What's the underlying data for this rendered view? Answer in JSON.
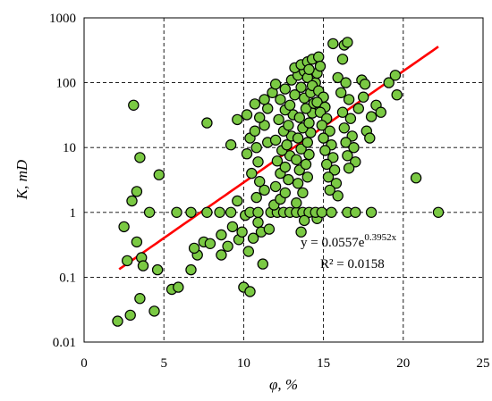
{
  "chart_data": {
    "type": "scatter",
    "title": "",
    "xlabel": "φ, %",
    "ylabel": "K, mD",
    "xlim": [
      0,
      25
    ],
    "ylim": [
      0.01,
      1000
    ],
    "yscale": "log",
    "grid": true,
    "x_ticks": [
      "0",
      "5",
      "10",
      "15",
      "20",
      "25"
    ],
    "y_ticks": [
      "0.01",
      "0.1",
      "1",
      "10",
      "100",
      "1000"
    ],
    "marker_color": "#7ac943",
    "marker_edge": "#000000",
    "trendline_color": "#ff0000",
    "annotation_eq": "y = 0.0557e",
    "annotation_exp": "0.3952x",
    "annotation_r2": "R² = 0.0158",
    "trendline": {
      "a": 0.0557,
      "b": 0.3952,
      "x_start": 2.2,
      "x_end": 22.2
    },
    "points": [
      [
        2.1,
        0.021
      ],
      [
        2.9,
        0.026
      ],
      [
        3.5,
        0.047
      ],
      [
        4.4,
        0.03
      ],
      [
        3.1,
        45
      ],
      [
        3.5,
        7
      ],
      [
        4.7,
        3.8
      ],
      [
        3.3,
        2.1
      ],
      [
        3.0,
        1.5
      ],
      [
        4.1,
        1.0
      ],
      [
        2.5,
        0.6
      ],
      [
        3.3,
        0.35
      ],
      [
        2.7,
        0.18
      ],
      [
        3.6,
        0.2
      ],
      [
        3.7,
        0.15
      ],
      [
        4.6,
        0.13
      ],
      [
        5.5,
        0.065
      ],
      [
        5.9,
        0.07
      ],
      [
        6.7,
        0.13
      ],
      [
        7.1,
        0.22
      ],
      [
        6.9,
        0.28
      ],
      [
        7.5,
        0.35
      ],
      [
        7.9,
        0.33
      ],
      [
        5.8,
        1.0
      ],
      [
        6.7,
        1.0
      ],
      [
        7.7,
        1.0
      ],
      [
        8.5,
        1.0
      ],
      [
        7.7,
        24
      ],
      [
        8.6,
        0.22
      ],
      [
        9.0,
        0.3
      ],
      [
        8.6,
        0.45
      ],
      [
        9.3,
        0.6
      ],
      [
        9.7,
        0.38
      ],
      [
        9.2,
        1.0
      ],
      [
        9.6,
        1.5
      ],
      [
        9.9,
        0.5
      ],
      [
        10.1,
        0.9
      ],
      [
        9.2,
        11
      ],
      [
        9.6,
        27
      ],
      [
        10.2,
        32
      ],
      [
        10.7,
        47
      ],
      [
        10.0,
        0.07
      ],
      [
        10.4,
        0.06
      ],
      [
        10.3,
        0.25
      ],
      [
        10.6,
        0.4
      ],
      [
        10.9,
        0.7
      ],
      [
        10.4,
        1.0
      ],
      [
        10.9,
        1.0
      ],
      [
        11.2,
        0.16
      ],
      [
        11.1,
        0.5
      ],
      [
        11.6,
        0.55
      ],
      [
        10.8,
        1.7
      ],
      [
        11.3,
        2.2
      ],
      [
        11.0,
        3.0
      ],
      [
        10.5,
        4.0
      ],
      [
        10.9,
        6.0
      ],
      [
        10.2,
        8.0
      ],
      [
        10.8,
        10
      ],
      [
        11.5,
        12
      ],
      [
        10.4,
        14
      ],
      [
        10.7,
        18
      ],
      [
        11.3,
        22
      ],
      [
        11.0,
        29
      ],
      [
        11.5,
        40
      ],
      [
        11.3,
        55
      ],
      [
        11.8,
        70
      ],
      [
        11.7,
        1.0
      ],
      [
        12.1,
        1.0
      ],
      [
        12.5,
        1.0
      ],
      [
        12.9,
        1.0
      ],
      [
        13.3,
        1.0
      ],
      [
        13.7,
        1.0
      ],
      [
        14.1,
        1.0
      ],
      [
        11.9,
        1.3
      ],
      [
        12.3,
        1.6
      ],
      [
        12.6,
        2.0
      ],
      [
        12.0,
        2.5
      ],
      [
        12.8,
        3.2
      ],
      [
        12.3,
        4.0
      ],
      [
        12.6,
        5.0
      ],
      [
        12.1,
        6.2
      ],
      [
        12.9,
        7.5
      ],
      [
        12.4,
        9.0
      ],
      [
        12.7,
        11
      ],
      [
        12.0,
        13
      ],
      [
        13.0,
        15
      ],
      [
        12.5,
        18
      ],
      [
        12.8,
        22
      ],
      [
        12.2,
        27
      ],
      [
        13.1,
        32
      ],
      [
        12.6,
        38
      ],
      [
        12.9,
        45
      ],
      [
        12.3,
        55
      ],
      [
        13.2,
        65
      ],
      [
        12.6,
        80
      ],
      [
        12.0,
        95
      ],
      [
        13.0,
        110
      ],
      [
        13.4,
        130
      ],
      [
        13.8,
        150
      ],
      [
        13.2,
        170
      ],
      [
        13.6,
        190
      ],
      [
        14.0,
        210
      ],
      [
        14.3,
        230
      ],
      [
        14.7,
        250
      ],
      [
        13.3,
        1.4
      ],
      [
        13.7,
        2.0
      ],
      [
        13.4,
        2.8
      ],
      [
        14.0,
        3.5
      ],
      [
        13.5,
        4.5
      ],
      [
        13.9,
        5.5
      ],
      [
        13.3,
        6.5
      ],
      [
        14.1,
        7.8
      ],
      [
        13.6,
        9.5
      ],
      [
        14.0,
        12
      ],
      [
        13.4,
        14
      ],
      [
        14.2,
        17
      ],
      [
        13.7,
        20
      ],
      [
        14.1,
        24
      ],
      [
        13.5,
        29
      ],
      [
        14.3,
        34
      ],
      [
        13.9,
        40
      ],
      [
        14.4,
        48
      ],
      [
        13.8,
        58
      ],
      [
        14.2,
        70
      ],
      [
        13.6,
        85
      ],
      [
        14.5,
        100
      ],
      [
        14.0,
        120
      ],
      [
        14.6,
        140
      ],
      [
        14.1,
        160
      ],
      [
        14.8,
        180
      ],
      [
        14.3,
        90
      ],
      [
        14.7,
        75
      ],
      [
        15.0,
        60
      ],
      [
        14.6,
        50
      ],
      [
        15.1,
        42
      ],
      [
        14.8,
        35
      ],
      [
        15.2,
        28
      ],
      [
        14.9,
        22
      ],
      [
        15.4,
        18
      ],
      [
        15.0,
        14
      ],
      [
        15.5,
        11
      ],
      [
        15.1,
        9
      ],
      [
        15.6,
        7
      ],
      [
        15.2,
        5.5
      ],
      [
        15.7,
        4.5
      ],
      [
        15.3,
        3.5
      ],
      [
        15.8,
        2.8
      ],
      [
        15.4,
        2.2
      ],
      [
        15.9,
        1.8
      ],
      [
        13.8,
        0.75
      ],
      [
        13.6,
        0.5
      ],
      [
        14.6,
        0.8
      ],
      [
        14.5,
        1.0
      ],
      [
        14.9,
        1.0
      ],
      [
        15.5,
        1.0
      ],
      [
        16.5,
        1.0
      ],
      [
        17.0,
        1.0
      ],
      [
        18.0,
        1.0
      ],
      [
        15.6,
        400
      ],
      [
        16.3,
        380
      ],
      [
        16.5,
        420
      ],
      [
        16.2,
        230
      ],
      [
        15.9,
        120
      ],
      [
        16.4,
        100
      ],
      [
        16.1,
        70
      ],
      [
        16.6,
        55
      ],
      [
        16.2,
        35
      ],
      [
        16.7,
        28
      ],
      [
        16.3,
        20
      ],
      [
        16.8,
        15
      ],
      [
        16.4,
        12
      ],
      [
        16.9,
        10
      ],
      [
        16.5,
        7.5
      ],
      [
        17.0,
        6
      ],
      [
        16.6,
        4.8
      ],
      [
        17.2,
        40
      ],
      [
        17.5,
        60
      ],
      [
        17.4,
        110
      ],
      [
        17.6,
        95
      ],
      [
        18.0,
        30
      ],
      [
        17.7,
        18
      ],
      [
        17.9,
        14
      ],
      [
        18.3,
        45
      ],
      [
        18.6,
        35
      ],
      [
        19.1,
        100
      ],
      [
        19.5,
        130
      ],
      [
        19.6,
        65
      ],
      [
        20.8,
        3.4
      ],
      [
        22.2,
        1.0
      ]
    ]
  }
}
